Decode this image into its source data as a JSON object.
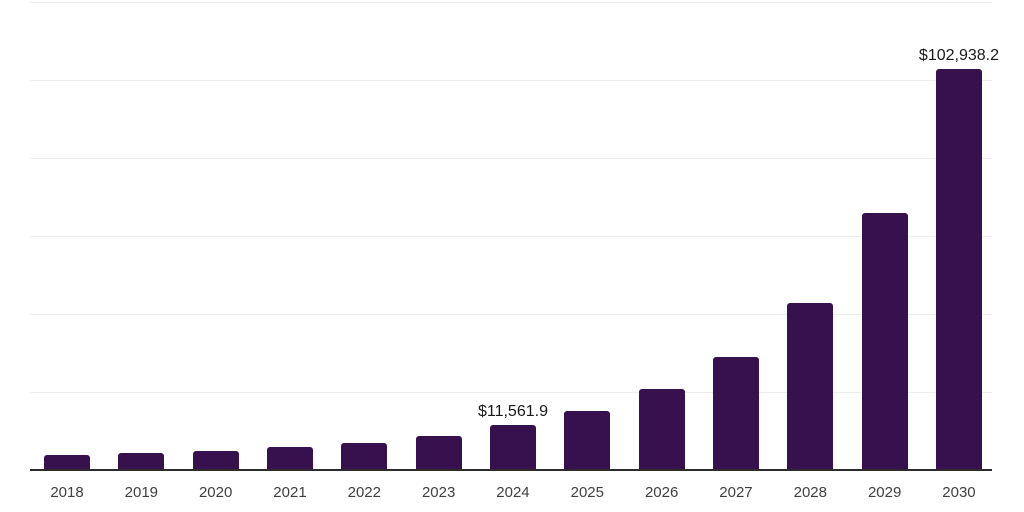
{
  "chart_data": {
    "type": "bar",
    "title": "",
    "xlabel": "",
    "ylabel": "",
    "categories": [
      "2018",
      "2019",
      "2020",
      "2021",
      "2022",
      "2023",
      "2024",
      "2025",
      "2026",
      "2027",
      "2028",
      "2029",
      "2030"
    ],
    "values": [
      3850,
      4360,
      5000,
      5800,
      6920,
      8720,
      11561.9,
      15130,
      20700,
      29050,
      42900,
      65800,
      102938.2
    ],
    "data_labels": [
      {
        "index": 6,
        "text": "$11,561.9"
      },
      {
        "index": 12,
        "text": "$102,938.2"
      }
    ],
    "ylim": [
      0,
      120000
    ],
    "gridline_values": [
      20000,
      40000,
      60000,
      80000,
      100000,
      120000
    ],
    "y_axis_tick_labels_visible": false,
    "grid": "horizontal",
    "legend": "none",
    "colors": {
      "bar": "#36114E",
      "gridline": "#EDEDED",
      "axis_line": "#2C2C2C",
      "data_label_text": "#1A1A1A",
      "tick_label_text": "#3F3F3F",
      "background": "#FFFFFF"
    }
  }
}
